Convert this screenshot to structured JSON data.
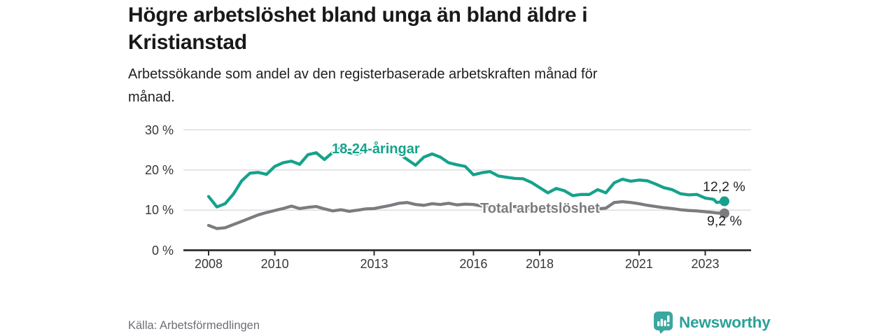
{
  "chart_data": {
    "type": "line",
    "title": "Högre arbetslöshet bland unga än bland äldre i Kristianstad",
    "subtitle": "Arbetssökande som andel av den registerbaserade arbetskraften månad för månad.",
    "source": "Källa: Arbetsförmedlingen",
    "unit": "%",
    "xlabel": "",
    "ylabel": "",
    "grid": "horizontal",
    "legend": "inline-labels",
    "ylim": [
      0,
      30
    ],
    "xlim": [
      2007.25,
      2024.4
    ],
    "x_ticks": [
      2008,
      2010,
      2013,
      2016,
      2018,
      2021,
      2023
    ],
    "x_tick_labels": [
      "2008",
      "2010",
      "2013",
      "2016",
      "2018",
      "2021",
      "2023"
    ],
    "y_ticks": [
      0,
      10,
      20,
      30
    ],
    "y_tick_labels": [
      "0 %",
      "10 %",
      "20 %",
      "30 %"
    ],
    "colors": {
      "young": "#15a28c",
      "total": "#7b7b80",
      "grid": "#d9d9d9",
      "axis": "#2d2d2d",
      "brand": "#2aa19a"
    },
    "x": [
      2008,
      2008.25,
      2008.5,
      2008.75,
      2009,
      2009.25,
      2009.5,
      2009.75,
      2010,
      2010.25,
      2010.5,
      2010.75,
      2011,
      2011.25,
      2011.5,
      2011.75,
      2012,
      2012.25,
      2012.5,
      2012.75,
      2013,
      2013.25,
      2013.5,
      2013.75,
      2014,
      2014.25,
      2014.5,
      2014.75,
      2015,
      2015.25,
      2015.5,
      2015.75,
      2016,
      2016.25,
      2016.5,
      2016.75,
      2017,
      2017.25,
      2017.5,
      2017.75,
      2018,
      2018.25,
      2018.5,
      2018.75,
      2019,
      2019.25,
      2019.5,
      2019.75,
      2020,
      2020.25,
      2020.5,
      2020.75,
      2021,
      2021.25,
      2021.5,
      2021.75,
      2022,
      2022.25,
      2022.5,
      2022.75,
      2023,
      2023.25,
      2023.35,
      2023.58
    ],
    "series": [
      {
        "name": "18-24-åringar",
        "color": "#15a28c",
        "end_label": "12,2 %",
        "end_value": 12.2,
        "values": [
          13.4,
          10.8,
          11.6,
          14.0,
          17.3,
          19.2,
          19.4,
          18.9,
          20.9,
          21.8,
          22.2,
          21.4,
          23.8,
          24.3,
          22.6,
          24.4,
          25.5,
          24.3,
          24.0,
          25.2,
          24.8,
          25.7,
          25.2,
          24.0,
          22.6,
          21.2,
          23.2,
          24.0,
          23.2,
          21.8,
          21.3,
          20.9,
          18.8,
          19.3,
          19.6,
          18.5,
          18.2,
          17.9,
          17.8,
          16.9,
          15.6,
          14.3,
          15.4,
          14.8,
          13.6,
          13.9,
          13.9,
          15.1,
          14.3,
          16.8,
          17.7,
          17.2,
          17.5,
          17.3,
          16.5,
          15.6,
          15.1,
          14.1,
          13.8,
          13.9,
          13.0,
          12.7,
          11.9,
          12.2
        ]
      },
      {
        "name": "Total arbetslöshet",
        "color": "#7b7b80",
        "end_label": "9,2 %",
        "end_value": 9.2,
        "values": [
          6.2,
          5.4,
          5.6,
          6.4,
          7.2,
          8.0,
          8.8,
          9.4,
          9.9,
          10.4,
          11.0,
          10.4,
          10.7,
          10.9,
          10.3,
          9.8,
          10.1,
          9.7,
          10.0,
          10.3,
          10.4,
          10.8,
          11.2,
          11.7,
          11.9,
          11.4,
          11.2,
          11.6,
          11.4,
          11.7,
          11.3,
          11.5,
          11.4,
          11.0,
          10.8,
          11.0,
          10.7,
          10.9,
          10.5,
          10.3,
          10.4,
          10.0,
          10.2,
          9.9,
          10.0,
          10.2,
          10.4,
          10.3,
          10.5,
          11.9,
          12.1,
          11.9,
          11.6,
          11.2,
          10.9,
          10.6,
          10.4,
          10.1,
          9.9,
          9.8,
          9.6,
          9.4,
          9.3,
          9.2
        ]
      }
    ]
  },
  "footer": {
    "brand": "Newsworthy"
  }
}
